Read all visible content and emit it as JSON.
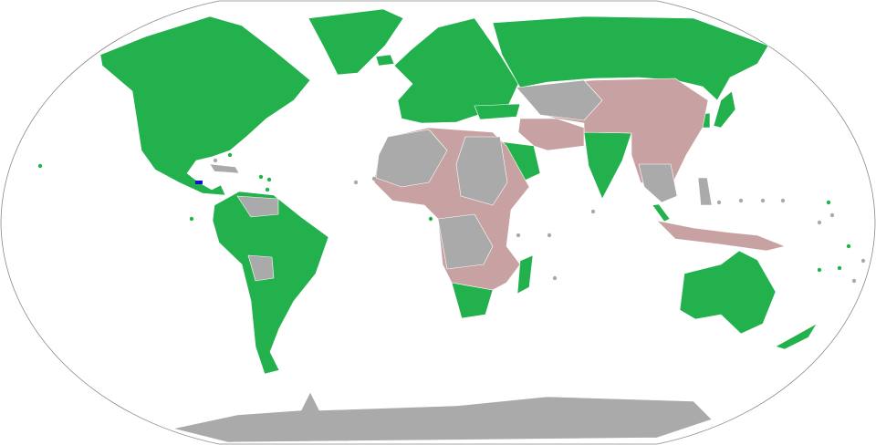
{
  "map": {
    "projection": "robinson",
    "colors": {
      "category_green": "#22b14c",
      "category_pink": "#c8a2a2",
      "category_gray": "#aaaaaa",
      "category_blue": "#0a14c8",
      "ocean": "#ffffff",
      "outline": "#888888"
    }
  }
}
